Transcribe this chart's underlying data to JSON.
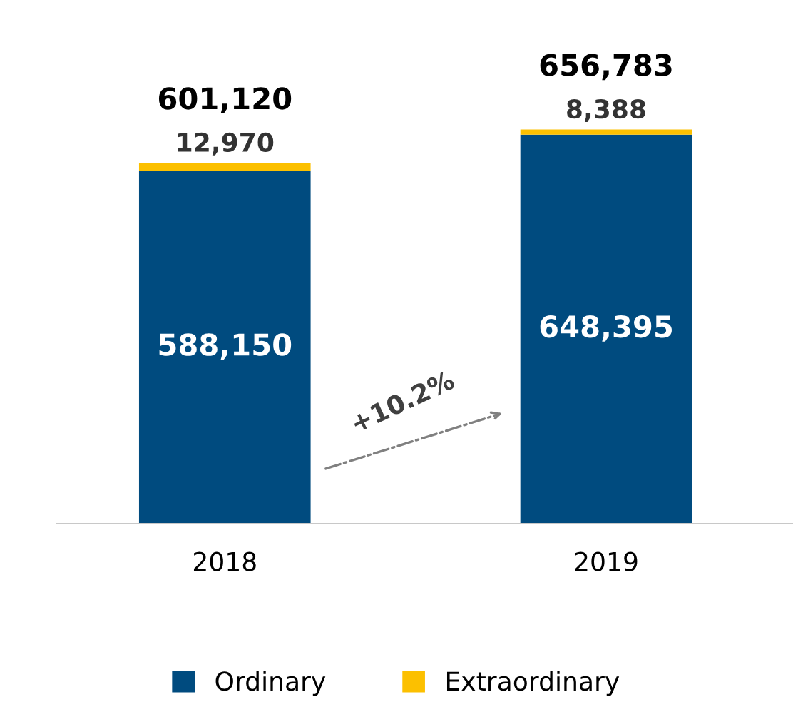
{
  "chart_data": {
    "type": "bar",
    "stacked": true,
    "categories": [
      "2018",
      "2019"
    ],
    "series": [
      {
        "name": "Ordinary",
        "color": "#004b7f",
        "values": [
          588150,
          648395
        ],
        "value_labels": [
          "588,150",
          "648,395"
        ]
      },
      {
        "name": "Extraordinary",
        "color": "#fcc000",
        "values": [
          12970,
          8388
        ],
        "value_labels": [
          "12,970",
          "8,388"
        ]
      }
    ],
    "totals": [
      "601,120",
      "656,783"
    ],
    "tick_labels": "x",
    "annotations": [
      "+10.2%"
    ],
    "legend": "bottom",
    "grid": false
  }
}
